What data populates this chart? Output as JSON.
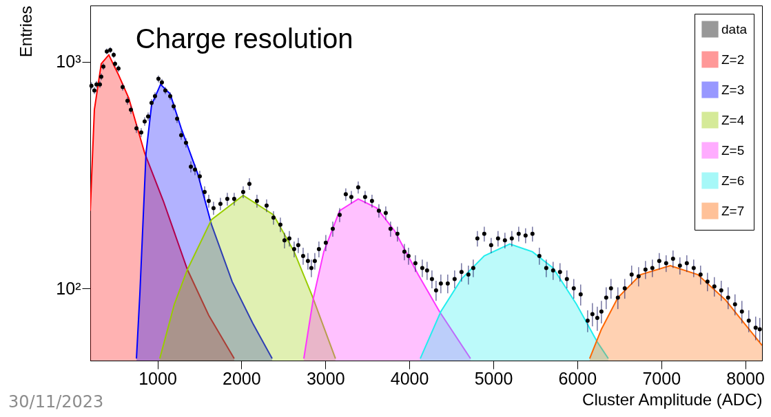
{
  "chart_data": {
    "type": "scatter",
    "title": "Charge resolution",
    "xlabel": "Cluster Amplitude (ADC)",
    "ylabel": "Entries",
    "annotations": [
      "30/11/2023"
    ],
    "log": "y",
    "grid": false,
    "legend": "top right",
    "xlim": [
      200,
      8200
    ],
    "ylim": [
      48,
      1770
    ],
    "xticks": [
      1000,
      2000,
      3000,
      4000,
      5000,
      6000,
      7000,
      8000
    ],
    "yticks": [
      {
        "value": 100,
        "label": "10²"
      },
      {
        "value": 1000,
        "label": "10³"
      }
    ],
    "series": [
      {
        "name": "data",
        "type": "scatter",
        "marker": "circle",
        "color": "#000000",
        "x": [
          214,
          249,
          274,
          315,
          331,
          356,
          397,
          438,
          479,
          495,
          536,
          586,
          643,
          684,
          750,
          807,
          848,
          889,
          930,
          971,
          1012,
          1053,
          1094,
          1152,
          1193,
          1234,
          1283,
          1340,
          1398,
          1447,
          1504,
          1562,
          1611,
          1668,
          1750,
          1832,
          1914,
          2021,
          2095,
          2185,
          2300,
          2382,
          2464,
          2513,
          2571,
          2628,
          2677,
          2735,
          2792,
          2833,
          2874,
          2923,
          3005,
          3088,
          3170,
          3243,
          3309,
          3391,
          3473,
          3555,
          3637,
          3719,
          3776,
          3858,
          3941,
          3990,
          4072,
          4154,
          4211,
          4269,
          4318,
          4375,
          4457,
          4539,
          4621,
          4703,
          4761,
          4810,
          4892,
          4974,
          5056,
          5138,
          5220,
          5302,
          5384,
          5466,
          5548,
          5630,
          5712,
          5794,
          5876,
          5958,
          6040,
          6123,
          6180,
          6238,
          6287,
          6344,
          6401,
          6483,
          6565,
          6647,
          6730,
          6812,
          6894,
          6976,
          7058,
          7140,
          7222,
          7304,
          7386,
          7468,
          7550,
          7632,
          7714,
          7796,
          7878,
          7960,
          8042,
          8124,
          8173
        ],
        "values": [
          783,
          746,
          794,
          794,
          858,
          952,
          1110,
          1126,
          1072,
          979,
          933,
          773,
          672,
          614,
          508,
          487,
          545,
          573,
          658,
          705,
          840,
          811,
          746,
          705,
          636,
          560,
          474,
          439,
          344,
          334,
          312,
          266,
          243,
          226,
          236,
          248,
          248,
          266,
          289,
          243,
          232,
          205,
          191,
          163,
          166,
          149,
          155,
          139,
          132,
          123,
          132,
          149,
          159,
          183,
          211,
          260,
          253,
          279,
          253,
          243,
          220,
          215,
          183,
          174,
          145,
          139,
          129,
          123,
          120,
          110,
          98,
          105,
          105,
          110,
          118,
          115,
          123,
          166,
          174,
          155,
          166,
          163,
          166,
          174,
          171,
          174,
          139,
          123,
          120,
          118,
          110,
          100,
          94,
          72,
          77,
          74,
          79,
          91,
          100,
          91,
          100,
          115,
          113,
          121,
          123,
          132,
          129,
          135,
          126,
          129,
          123,
          115,
          107,
          102,
          98,
          91,
          85,
          79,
          72,
          67,
          66
        ],
        "errors": [
          28,
          27,
          28,
          28,
          29,
          31,
          33,
          34,
          33,
          31,
          31,
          28,
          26,
          25,
          23,
          22,
          23,
          24,
          26,
          27,
          29,
          28,
          27,
          27,
          25,
          24,
          22,
          21,
          19,
          18,
          18,
          16,
          16,
          15,
          15,
          16,
          16,
          16,
          17,
          16,
          15,
          14,
          14,
          13,
          13,
          12,
          12,
          12,
          11,
          11,
          11,
          12,
          13,
          14,
          15,
          16,
          16,
          17,
          16,
          16,
          15,
          15,
          14,
          13,
          12,
          12,
          11,
          11,
          11,
          10,
          10,
          10,
          10,
          10,
          11,
          11,
          11,
          13,
          13,
          12,
          13,
          13,
          13,
          13,
          13,
          13,
          12,
          11,
          11,
          11,
          10,
          10,
          10,
          8,
          9,
          9,
          9,
          10,
          10,
          10,
          10,
          11,
          11,
          11,
          11,
          11,
          11,
          12,
          11,
          11,
          11,
          11,
          10,
          10,
          10,
          10,
          9,
          9,
          8,
          8,
          8
        ]
      },
      {
        "name": "Z=2",
        "type": "area",
        "color": "#ff0000",
        "x": [
          200,
          249,
          331,
          421,
          540,
          659,
          848,
          1070,
          1357,
          1611,
          1914
        ],
        "values": [
          220,
          614,
          979,
          1072,
          870,
          690,
          395,
          243,
          121,
          76,
          49
        ]
      },
      {
        "name": "Z=3",
        "type": "area",
        "color": "#0000ff",
        "x": [
          750,
          791,
          864,
          930,
          1037,
          1152,
          1283,
          1480,
          1644,
          1890,
          2136,
          2366
        ],
        "values": [
          49,
          95,
          395,
          644,
          794,
          720,
          508,
          320,
          191,
          107,
          70,
          49
        ]
      },
      {
        "name": "Z=4",
        "type": "area",
        "color": "#99cc00",
        "x": [
          1028,
          1201,
          1357,
          1644,
          2021,
          2382,
          2628,
          2841,
          3120
        ],
        "values": [
          49,
          85,
          121,
          201,
          257,
          211,
          145,
          93,
          49
        ]
      },
      {
        "name": "Z=5",
        "type": "area",
        "color": "#ff33ff",
        "x": [
          2743,
          2858,
          2981,
          3170,
          3391,
          3612,
          3826,
          4105,
          4359,
          4728
        ],
        "values": [
          49,
          91,
          145,
          220,
          248,
          226,
          179,
          115,
          79,
          49
        ]
      },
      {
        "name": "Z=6",
        "type": "area",
        "color": "#22eeee",
        "x": [
          4130,
          4375,
          4621,
          4892,
          5196,
          5466,
          5712,
          5991,
          6238,
          6369
        ],
        "values": [
          49,
          79,
          110,
          139,
          157,
          145,
          123,
          85,
          58,
          49
        ]
      },
      {
        "name": "Z=7",
        "type": "area",
        "color": "#ff6600",
        "x": [
          6147,
          6287,
          6483,
          6754,
          7107,
          7435,
          7763,
          8200
        ],
        "values": [
          49,
          66,
          91,
          115,
          126,
          115,
          89,
          56
        ]
      }
    ]
  }
}
